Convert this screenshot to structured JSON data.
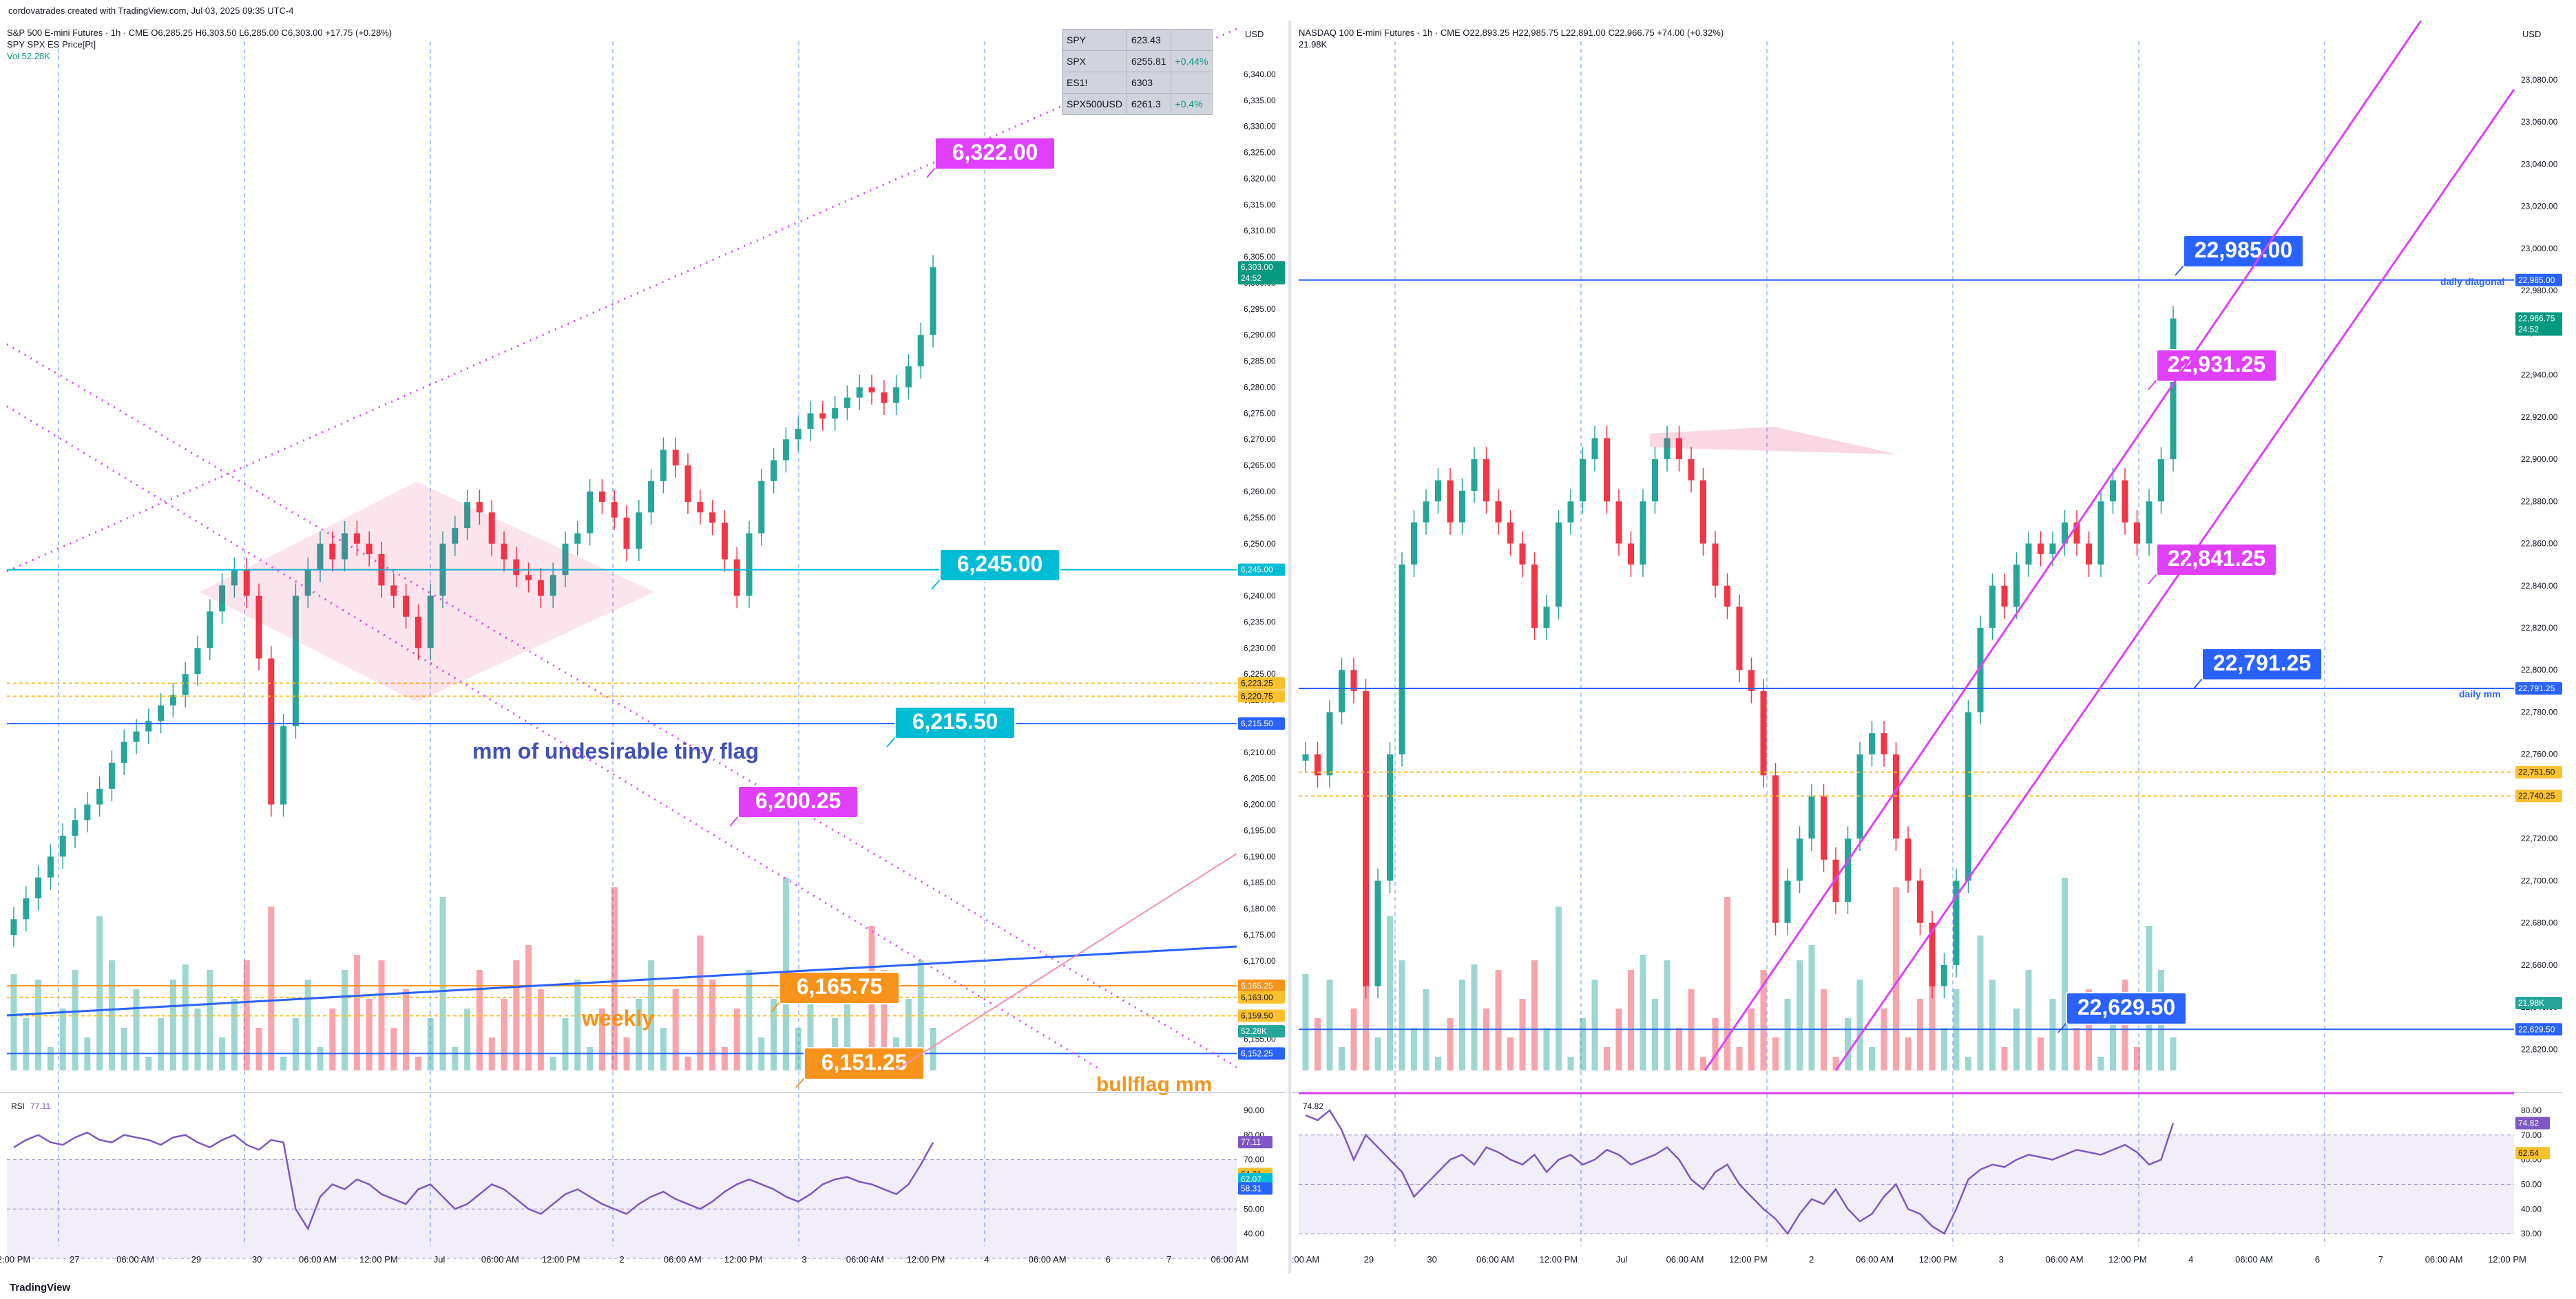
{
  "header": {
    "text": "cordovatrades created with TradingView.com, Jul 03, 2025 09:35 UTC-4"
  },
  "footer": {
    "brand": "TradingView"
  },
  "quote_table": [
    {
      "sym": "SPY",
      "price": "623.43",
      "chg": ""
    },
    {
      "sym": "SPX",
      "price": "6255.81",
      "chg": "+0.44%"
    },
    {
      "sym": "ES1!",
      "price": "6303",
      "chg": ""
    },
    {
      "sym": "SPX500USD",
      "price": "6261.3",
      "chg": "+0.4%"
    }
  ],
  "colors": {
    "up": "#26a69a",
    "down": "#f23645",
    "magenta": "#e040fb",
    "cyan": "#00bcd4",
    "blue": "#2962ff",
    "orange": "#f7931a",
    "yellow": "#fbc02d",
    "rsi": "#7e57c2"
  },
  "chart_data": [
    {
      "type": "candlestick",
      "title": "S&P 500 E-mini Futures · 1h · CME",
      "legend_lines": [
        "S&P 500 E-mini Futures · 1h · CME  O6,285.25  H6,303.50  L6,285.00  C6,303.00  +17.75 (+0.28%)",
        "SPY SPX ES Price[Pt]",
        "Vol 52.28K"
      ],
      "currency": "USD",
      "ylim": [
        6149,
        6345
      ],
      "price_ticks": [
        "6,340.00",
        "6,335.00",
        "6,330.00",
        "6,325.00",
        "6,320.00",
        "6,315.00",
        "6,310.00",
        "6,305.00",
        "6,300.00",
        "6,295.00",
        "6,290.00",
        "6,285.00",
        "6,280.00",
        "6,275.00",
        "6,270.00",
        "6,265.00",
        "6,260.00",
        "6,255.00",
        "6,250.00",
        "6,245.00",
        "6,240.00",
        "6,235.00",
        "6,230.00",
        "6,225.00",
        "6,220.00",
        "6,215.00",
        "6,210.00",
        "6,205.00",
        "6,200.00",
        "6,195.00",
        "6,190.00",
        "6,185.00",
        "6,180.00",
        "6,175.00",
        "6,170.00",
        "6,165.00",
        "6,160.00",
        "6,155.00"
      ],
      "time_labels": [
        "2:00 PM",
        "27",
        "06:00 AM",
        "29",
        "30",
        "06:00 AM",
        "12:00 PM",
        "Jul",
        "06:00 AM",
        "12:00 PM",
        "2",
        "06:00 AM",
        "12:00 PM",
        "3",
        "06:00 AM",
        "12:00 PM",
        "4",
        "06:00 AM",
        "6",
        "7",
        "06:00 AM"
      ],
      "close_path": [
        6178,
        6182,
        6186,
        6190,
        6194,
        6197,
        6200,
        6203,
        6208,
        6212,
        6214,
        6216,
        6219,
        6221,
        6225,
        6230,
        6237,
        6242,
        6245,
        6240,
        6228,
        6200,
        6215,
        6240,
        6245,
        6250,
        6247,
        6252,
        6250,
        6248,
        6242,
        6240,
        6236,
        6230,
        6240,
        6250,
        6253,
        6258,
        6256,
        6250,
        6247,
        6244,
        6243,
        6240,
        6244,
        6250,
        6252,
        6260,
        6258,
        6255,
        6249,
        6256,
        6262,
        6268,
        6265,
        6258,
        6256,
        6254,
        6247,
        6240,
        6252,
        6262,
        6266,
        6270,
        6272,
        6275,
        6274,
        6276,
        6278,
        6280,
        6279,
        6277,
        6280,
        6284,
        6290,
        6303
      ],
      "price_labels": [
        {
          "text": "6,322.00",
          "price": 6322,
          "color": "magenta"
        },
        {
          "text": "6,245.00",
          "price": 6245,
          "color": "cyan"
        },
        {
          "text": "6,215.50",
          "price": 6215.5,
          "color": "cyan"
        },
        {
          "text": "6,200.25",
          "price": 6200.25,
          "color": "magenta"
        },
        {
          "text": "6,165.75",
          "price": 6165.75,
          "color": "orange"
        },
        {
          "text": "6,151.25",
          "price": 6151.25,
          "color": "orange"
        }
      ],
      "axis_tags": [
        {
          "text": "6,303.00",
          "sub": "24:52",
          "price": 6303,
          "color": "#089981"
        },
        {
          "text": "6,245.00",
          "price": 6245,
          "color": "#00bcd4"
        },
        {
          "text": "6,223.25",
          "price": 6223.25,
          "color": "#fbc02d"
        },
        {
          "text": "6,220.75",
          "price": 6220.75,
          "color": "#fbc02d"
        },
        {
          "text": "6,215.50",
          "price": 6215.5,
          "color": "#2962ff"
        },
        {
          "text": "6,165.25",
          "price": 6165.25,
          "color": "#f7931a"
        },
        {
          "text": "6,163.00",
          "price": 6163,
          "color": "#fbc02d"
        },
        {
          "text": "6,159.50",
          "price": 6159.5,
          "color": "#fbc02d"
        },
        {
          "text": "52.28K",
          "price": 6156.5,
          "color": "#26a69a"
        },
        {
          "text": "6,152.25",
          "price": 6152.25,
          "color": "#2962ff"
        }
      ],
      "annotations": [
        "mm of undesirable tiny flag",
        "weekly",
        "bullflag mm"
      ],
      "rsi": {
        "label": "RSI",
        "value_text": "77.11",
        "ylim": [
          35,
          95
        ],
        "ticks": [
          "90.00",
          "80.00",
          "70.00",
          "60.00",
          "50.00",
          "40.00"
        ],
        "tags": [
          {
            "text": "77.11",
            "value": 77.11,
            "color": "#7e57c2"
          },
          {
            "text": "64.21",
            "value": 64.21,
            "color": "#fbc02d"
          },
          {
            "text": "62.07",
            "value": 62.07,
            "color": "#00bcd4"
          },
          {
            "text": "58.31",
            "value": 58.31,
            "color": "#2962ff"
          }
        ],
        "path": [
          75,
          78,
          80,
          77,
          76,
          79,
          81,
          78,
          77,
          80,
          79,
          78,
          76,
          79,
          80,
          77,
          75,
          78,
          80,
          76,
          74,
          78,
          77,
          50,
          42,
          55,
          60,
          58,
          62,
          60,
          56,
          54,
          52,
          58,
          60,
          55,
          50,
          52,
          56,
          60,
          58,
          54,
          50,
          48,
          52,
          56,
          58,
          55,
          52,
          50,
          48,
          52,
          55,
          57,
          54,
          52,
          50,
          53,
          57,
          60,
          62,
          60,
          58,
          55,
          53,
          56,
          60,
          62,
          63,
          61,
          60,
          58,
          56,
          60,
          68,
          77
        ]
      }
    },
    {
      "type": "candlestick",
      "title": "NASDAQ 100 E-mini Futures · 1h · CME",
      "legend_lines": [
        "NASDAQ 100 E-mini Futures · 1h · CME  O22,893.25  H22,985.75  L22,891.00  C22,966.75  +74.00 (+0.32%)",
        "21.98K"
      ],
      "currency": "USD",
      "ylim": [
        22610,
        23095
      ],
      "price_ticks": [
        "23,080.00",
        "23,060.00",
        "23,040.00",
        "23,020.00",
        "23,000.00",
        "22,980.00",
        "22,960.00",
        "22,940.00",
        "22,920.00",
        "22,900.00",
        "22,880.00",
        "22,860.00",
        "22,840.00",
        "22,820.00",
        "22,800.00",
        "22,780.00",
        "22,760.00",
        "22,740.00",
        "22,720.00",
        "22,700.00",
        "22,680.00",
        "22,660.00",
        "22,640.00",
        "22,620.00"
      ],
      "time_labels": [
        ":00 AM",
        "29",
        "30",
        "06:00 AM",
        "12:00 PM",
        "Jul",
        "06:00 AM",
        "12:00 PM",
        "2",
        "06:00 AM",
        "12:00 PM",
        "3",
        "06:00 AM",
        "12:00 PM",
        "4",
        "06:00 AM",
        "6",
        "7",
        "06:00 AM",
        "12:00 PM"
      ],
      "close_path": [
        22760,
        22750,
        22780,
        22800,
        22790,
        22650,
        22700,
        22760,
        22850,
        22870,
        22880,
        22890,
        22870,
        22885,
        22900,
        22880,
        22870,
        22860,
        22850,
        22820,
        22830,
        22870,
        22880,
        22900,
        22910,
        22880,
        22860,
        22850,
        22880,
        22900,
        22910,
        22900,
        22890,
        22860,
        22840,
        22830,
        22800,
        22790,
        22750,
        22680,
        22700,
        22720,
        22740,
        22710,
        22690,
        22720,
        22760,
        22770,
        22760,
        22720,
        22700,
        22680,
        22650,
        22660,
        22700,
        22780,
        22820,
        22840,
        22830,
        22850,
        22860,
        22855,
        22860,
        22870,
        22860,
        22850,
        22880,
        22890,
        22870,
        22860,
        22880,
        22900,
        22966.75
      ],
      "price_labels": [
        {
          "text": "22,985.00",
          "price": 22985,
          "color": "blue"
        },
        {
          "text": "22,931.25",
          "price": 22931.25,
          "color": "magenta"
        },
        {
          "text": "22,841.25",
          "price": 22841.25,
          "color": "magenta"
        },
        {
          "text": "22,791.25",
          "price": 22791.25,
          "color": "blue"
        },
        {
          "text": "22,629.50",
          "price": 22629.5,
          "color": "blue"
        }
      ],
      "axis_tags": [
        {
          "text": "22,985.00",
          "price": 22985,
          "color": "#2962ff"
        },
        {
          "text": "22,966.75",
          "sub": "24:52",
          "price": 22966.75,
          "color": "#089981"
        },
        {
          "text": "22,791.25",
          "price": 22791.25,
          "color": "#2962ff"
        },
        {
          "text": "22,751.50",
          "price": 22751.5,
          "color": "#fbc02d"
        },
        {
          "text": "22,740.25",
          "price": 22740.25,
          "color": "#fbc02d"
        },
        {
          "text": "21.98K",
          "price": 22642,
          "color": "#26a69a"
        },
        {
          "text": "22,629.50",
          "price": 22629.5,
          "color": "#2962ff"
        }
      ],
      "annotations": [
        "daily diagonal",
        "daily mm"
      ],
      "rsi": {
        "label": "74.82",
        "value_text": "",
        "ylim": [
          25,
          85
        ],
        "ticks": [
          "80.00",
          "70.00",
          "60.00",
          "50.00",
          "40.00",
          "30.00"
        ],
        "tags": [
          {
            "text": "74.82",
            "value": 74.82,
            "color": "#7e57c2"
          },
          {
            "text": "62.64",
            "value": 62.64,
            "color": "#fbc02d"
          }
        ],
        "path": [
          78,
          76,
          80,
          72,
          60,
          70,
          65,
          60,
          55,
          45,
          50,
          55,
          60,
          62,
          58,
          65,
          63,
          60,
          58,
          62,
          55,
          60,
          62,
          58,
          60,
          64,
          62,
          58,
          60,
          62,
          65,
          60,
          52,
          48,
          55,
          58,
          50,
          45,
          40,
          36,
          30,
          38,
          44,
          42,
          48,
          40,
          35,
          38,
          45,
          50,
          40,
          38,
          33,
          30,
          40,
          52,
          56,
          58,
          57,
          60,
          62,
          61,
          60,
          62,
          64,
          63,
          62,
          64,
          66,
          63,
          58,
          60,
          74.82
        ]
      }
    }
  ]
}
